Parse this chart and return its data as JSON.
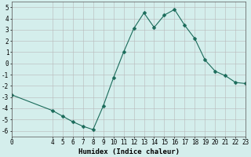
{
  "x": [
    0,
    4,
    5,
    6,
    7,
    8,
    9,
    10,
    11,
    12,
    13,
    14,
    15,
    16,
    17,
    18,
    19,
    20,
    21,
    22,
    23
  ],
  "y": [
    -2.8,
    -4.2,
    -4.7,
    -5.2,
    -5.6,
    -5.9,
    -3.8,
    -1.3,
    1.0,
    3.1,
    4.5,
    3.2,
    4.3,
    4.8,
    3.4,
    2.2,
    0.3,
    -0.7,
    -1.1,
    -1.7,
    -1.8
  ],
  "line_color": "#1a6b5a",
  "marker": "D",
  "marker_size": 2.5,
  "bg_color": "#d4eeec",
  "grid_major_color": "#b8b8b8",
  "grid_minor_color": "#d0d0d0",
  "xlabel": "Humidex (Indice chaleur)",
  "xlim": [
    0,
    23
  ],
  "ylim": [
    -6.5,
    5.5
  ],
  "yticks": [
    -6,
    -5,
    -4,
    -3,
    -2,
    -1,
    0,
    1,
    2,
    3,
    4,
    5
  ],
  "xticks": [
    0,
    4,
    5,
    6,
    7,
    8,
    9,
    10,
    11,
    12,
    13,
    14,
    15,
    16,
    17,
    18,
    19,
    20,
    21,
    22,
    23
  ],
  "xlabel_fontsize": 6.5,
  "tick_fontsize": 5.5,
  "linewidth": 0.8
}
